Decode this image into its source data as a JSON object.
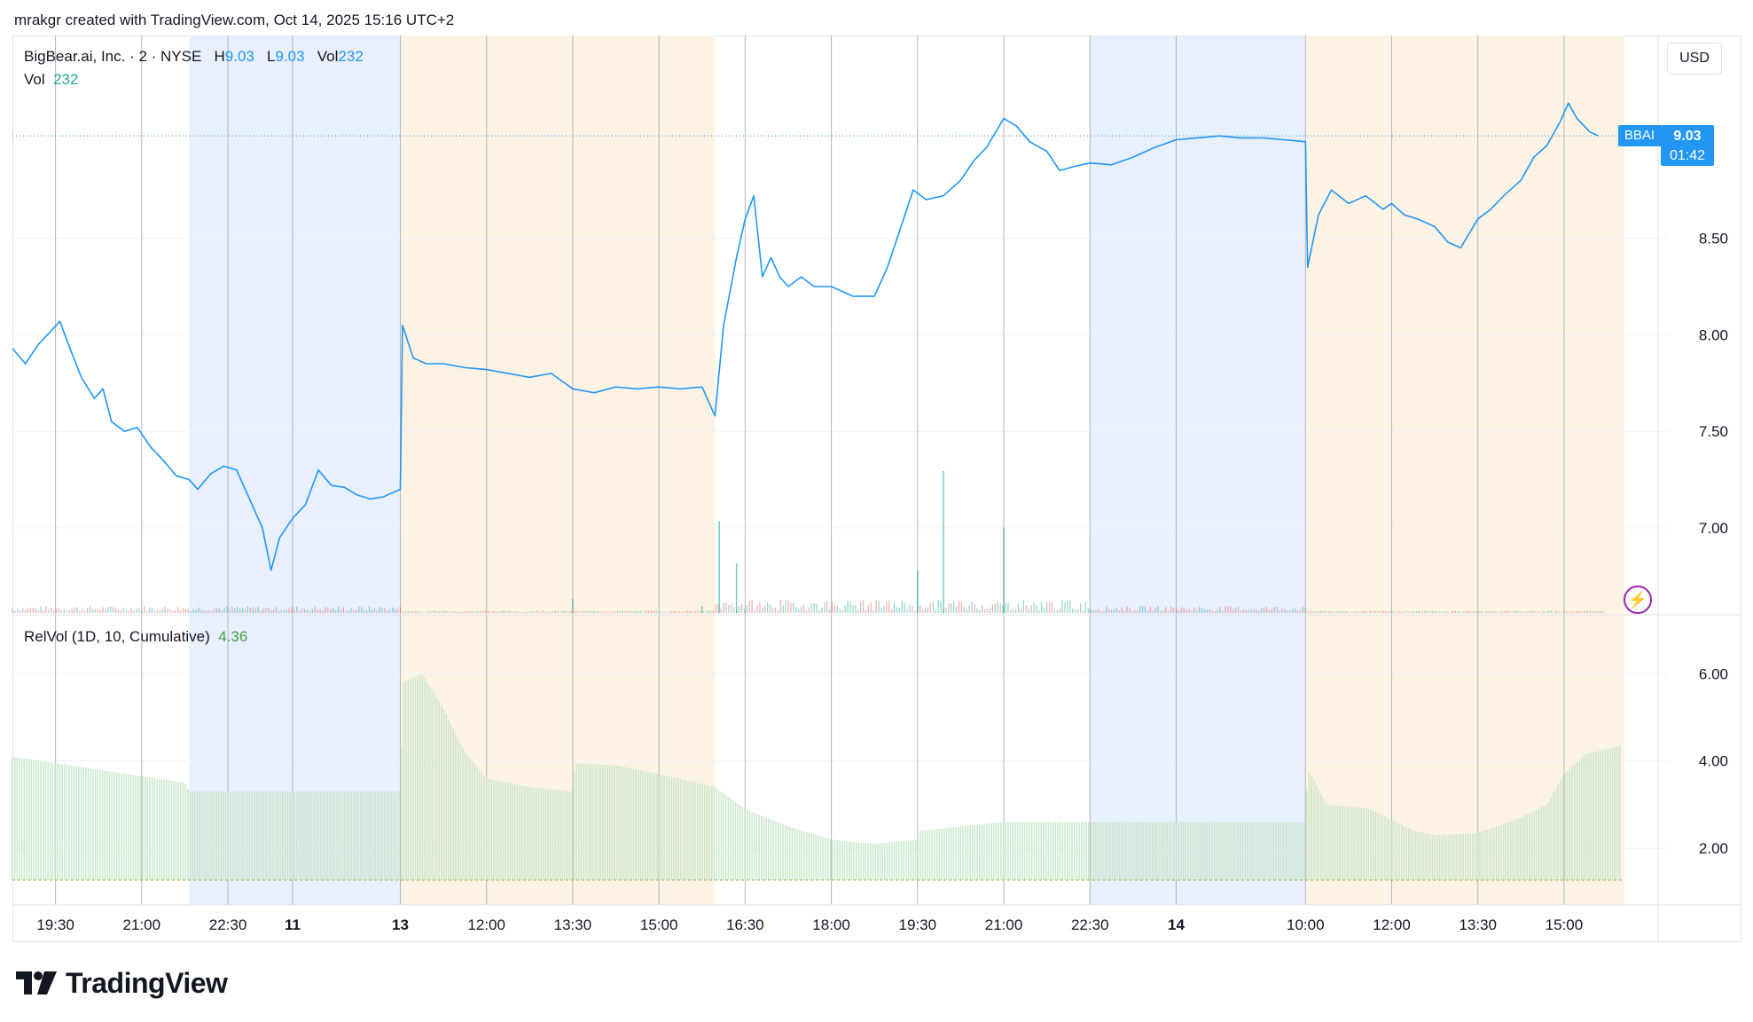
{
  "credit": "mrakgr created with TradingView.com, Oct 14, 2025 15:16 UTC+2",
  "legend": {
    "name": "BigBear.ai, Inc. · 2 · NYSE",
    "h_label": "H",
    "h_value": "9.03",
    "l_label": "L",
    "l_value": "9.03",
    "vol_label": "Vol",
    "vol_value": "232",
    "vol2_label": "Vol",
    "vol2_value": "232",
    "relvol_label": "RelVol (1D, 10, Cumulative)",
    "relvol_value": "4.36"
  },
  "currency": "USD",
  "last_price": {
    "symbol": "BBAI",
    "price": "9.03",
    "countdown": "01:42"
  },
  "logo_text": "TradingView",
  "colors": {
    "price_line": "#2196f3",
    "vol_up": "#26a69a",
    "vol_down": "#ef5350",
    "relvol_fill": "#c8e6c9",
    "session_pre": "#fdf3e4",
    "session_post": "#e8effd",
    "grid": "#d1d4dc"
  },
  "chart_data": [
    {
      "type": "line",
      "symbol": "BBAI",
      "y_ticks": [
        "8.50",
        "8.00",
        "7.50",
        "7.00"
      ],
      "ylim": [
        6.55,
        9.55
      ],
      "x_ticks": [
        "19:30",
        "21:00",
        "22:30",
        "11",
        "13",
        "12:00",
        "13:30",
        "15:00",
        "16:30",
        "18:00",
        "19:30",
        "21:00",
        "22:30",
        "14",
        "10:00",
        "12:00",
        "13:30",
        "15:00"
      ],
      "x_tick_index": [
        1.0,
        3.0,
        5.0,
        6.5,
        9.0,
        11.0,
        13.0,
        15.0,
        17.0,
        19.0,
        21.0,
        23.0,
        25.0,
        27.0,
        30.0,
        32.0,
        34.0,
        36.0
      ],
      "x_domain": [
        0,
        37.4
      ],
      "sessions": [
        {
          "type": "post",
          "from": 4.1,
          "to": 9.0
        },
        {
          "type": "pre",
          "from": 9.0,
          "to": 16.3
        },
        {
          "type": "post",
          "from": 25.0,
          "to": 30.0
        },
        {
          "type": "pre",
          "from": 30.0,
          "to": 37.4
        }
      ],
      "points": [
        [
          0.0,
          7.93
        ],
        [
          0.3,
          7.85
        ],
        [
          0.6,
          7.95
        ],
        [
          0.9,
          8.02
        ],
        [
          1.1,
          8.07
        ],
        [
          1.3,
          7.95
        ],
        [
          1.6,
          7.78
        ],
        [
          1.9,
          7.67
        ],
        [
          2.1,
          7.72
        ],
        [
          2.3,
          7.55
        ],
        [
          2.6,
          7.5
        ],
        [
          2.9,
          7.52
        ],
        [
          3.2,
          7.42
        ],
        [
          3.5,
          7.35
        ],
        [
          3.8,
          7.27
        ],
        [
          4.1,
          7.25
        ],
        [
          4.3,
          7.2
        ],
        [
          4.6,
          7.28
        ],
        [
          4.9,
          7.32
        ],
        [
          5.2,
          7.3
        ],
        [
          5.5,
          7.15
        ],
        [
          5.8,
          7.0
        ],
        [
          6.0,
          6.78
        ],
        [
          6.2,
          6.95
        ],
        [
          6.5,
          7.05
        ],
        [
          6.8,
          7.12
        ],
        [
          7.1,
          7.3
        ],
        [
          7.4,
          7.22
        ],
        [
          7.7,
          7.21
        ],
        [
          8.0,
          7.17
        ],
        [
          8.3,
          7.15
        ],
        [
          8.6,
          7.16
        ],
        [
          9.0,
          7.2
        ],
        [
          9.05,
          8.05
        ],
        [
          9.3,
          7.88
        ],
        [
          9.6,
          7.85
        ],
        [
          10.0,
          7.85
        ],
        [
          10.5,
          7.83
        ],
        [
          11.0,
          7.82
        ],
        [
          11.5,
          7.8
        ],
        [
          12.0,
          7.78
        ],
        [
          12.5,
          7.8
        ],
        [
          13.0,
          7.72
        ],
        [
          13.5,
          7.7
        ],
        [
          14.0,
          7.73
        ],
        [
          14.5,
          7.72
        ],
        [
          15.0,
          7.73
        ],
        [
          15.5,
          7.72
        ],
        [
          16.0,
          7.73
        ],
        [
          16.3,
          7.58
        ],
        [
          16.5,
          8.05
        ],
        [
          16.8,
          8.4
        ],
        [
          17.0,
          8.6
        ],
        [
          17.2,
          8.72
        ],
        [
          17.4,
          8.3
        ],
        [
          17.6,
          8.4
        ],
        [
          17.8,
          8.3
        ],
        [
          18.0,
          8.25
        ],
        [
          18.3,
          8.3
        ],
        [
          18.6,
          8.25
        ],
        [
          19.0,
          8.25
        ],
        [
          19.5,
          8.2
        ],
        [
          20.0,
          8.2
        ],
        [
          20.3,
          8.35
        ],
        [
          20.6,
          8.55
        ],
        [
          20.9,
          8.75
        ],
        [
          21.2,
          8.7
        ],
        [
          21.6,
          8.72
        ],
        [
          22.0,
          8.8
        ],
        [
          22.3,
          8.9
        ],
        [
          22.6,
          8.97
        ],
        [
          23.0,
          9.12
        ],
        [
          23.3,
          9.08
        ],
        [
          23.6,
          9.0
        ],
        [
          24.0,
          8.95
        ],
        [
          24.3,
          8.85
        ],
        [
          24.6,
          8.87
        ],
        [
          25.0,
          8.89
        ],
        [
          25.5,
          8.88
        ],
        [
          26.0,
          8.92
        ],
        [
          26.5,
          8.97
        ],
        [
          27.0,
          9.01
        ],
        [
          27.5,
          9.02
        ],
        [
          28.0,
          9.03
        ],
        [
          28.5,
          9.02
        ],
        [
          29.0,
          9.02
        ],
        [
          29.5,
          9.01
        ],
        [
          30.0,
          9.0
        ],
        [
          30.05,
          8.35
        ],
        [
          30.3,
          8.62
        ],
        [
          30.6,
          8.75
        ],
        [
          31.0,
          8.68
        ],
        [
          31.4,
          8.72
        ],
        [
          31.8,
          8.65
        ],
        [
          32.0,
          8.68
        ],
        [
          32.3,
          8.62
        ],
        [
          32.6,
          8.6
        ],
        [
          33.0,
          8.56
        ],
        [
          33.3,
          8.48
        ],
        [
          33.6,
          8.45
        ],
        [
          34.0,
          8.6
        ],
        [
          34.3,
          8.65
        ],
        [
          34.6,
          8.72
        ],
        [
          35.0,
          8.8
        ],
        [
          35.3,
          8.92
        ],
        [
          35.6,
          8.98
        ],
        [
          35.9,
          9.1
        ],
        [
          36.1,
          9.2
        ],
        [
          36.3,
          9.12
        ],
        [
          36.6,
          9.05
        ],
        [
          36.8,
          9.03
        ]
      ]
    },
    {
      "type": "bar",
      "name": "Vol",
      "note_scale": "relative",
      "spikes": [
        [
          16.0,
          0.05
        ],
        [
          16.4,
          0.65
        ],
        [
          16.8,
          0.35
        ],
        [
          21.0,
          0.3
        ],
        [
          21.6,
          1.0
        ],
        [
          23.0,
          0.6
        ],
        [
          13.0,
          0.1
        ]
      ]
    },
    {
      "type": "area",
      "name": "RelVol (1D, 10, Cumulative)",
      "y_ticks": [
        "6.00",
        "4.00",
        "2.00"
      ],
      "ylim": [
        0.7,
        7.35
      ],
      "points": [
        [
          0.0,
          4.1
        ],
        [
          2.0,
          3.8
        ],
        [
          4.0,
          3.5
        ],
        [
          4.1,
          3.3
        ],
        [
          9.0,
          3.3
        ],
        [
          9.05,
          5.8
        ],
        [
          9.5,
          6.0
        ],
        [
          10.0,
          5.2
        ],
        [
          10.5,
          4.2
        ],
        [
          11.0,
          3.6
        ],
        [
          12.0,
          3.4
        ],
        [
          13.0,
          3.3
        ],
        [
          13.05,
          3.95
        ],
        [
          14.0,
          3.9
        ],
        [
          15.0,
          3.7
        ],
        [
          16.3,
          3.4
        ],
        [
          17.0,
          2.9
        ],
        [
          18.0,
          2.5
        ],
        [
          19.0,
          2.2
        ],
        [
          20.0,
          2.1
        ],
        [
          21.0,
          2.2
        ],
        [
          21.05,
          2.4
        ],
        [
          23.0,
          2.6
        ],
        [
          25.0,
          2.6
        ],
        [
          30.0,
          2.6
        ],
        [
          30.05,
          3.8
        ],
        [
          30.5,
          3.0
        ],
        [
          31.5,
          2.9
        ],
        [
          32.5,
          2.4
        ],
        [
          33.0,
          2.3
        ],
        [
          34.0,
          2.35
        ],
        [
          35.0,
          2.7
        ],
        [
          35.6,
          3.0
        ],
        [
          36.0,
          3.7
        ],
        [
          36.5,
          4.15
        ],
        [
          37.3,
          4.35
        ]
      ]
    }
  ]
}
